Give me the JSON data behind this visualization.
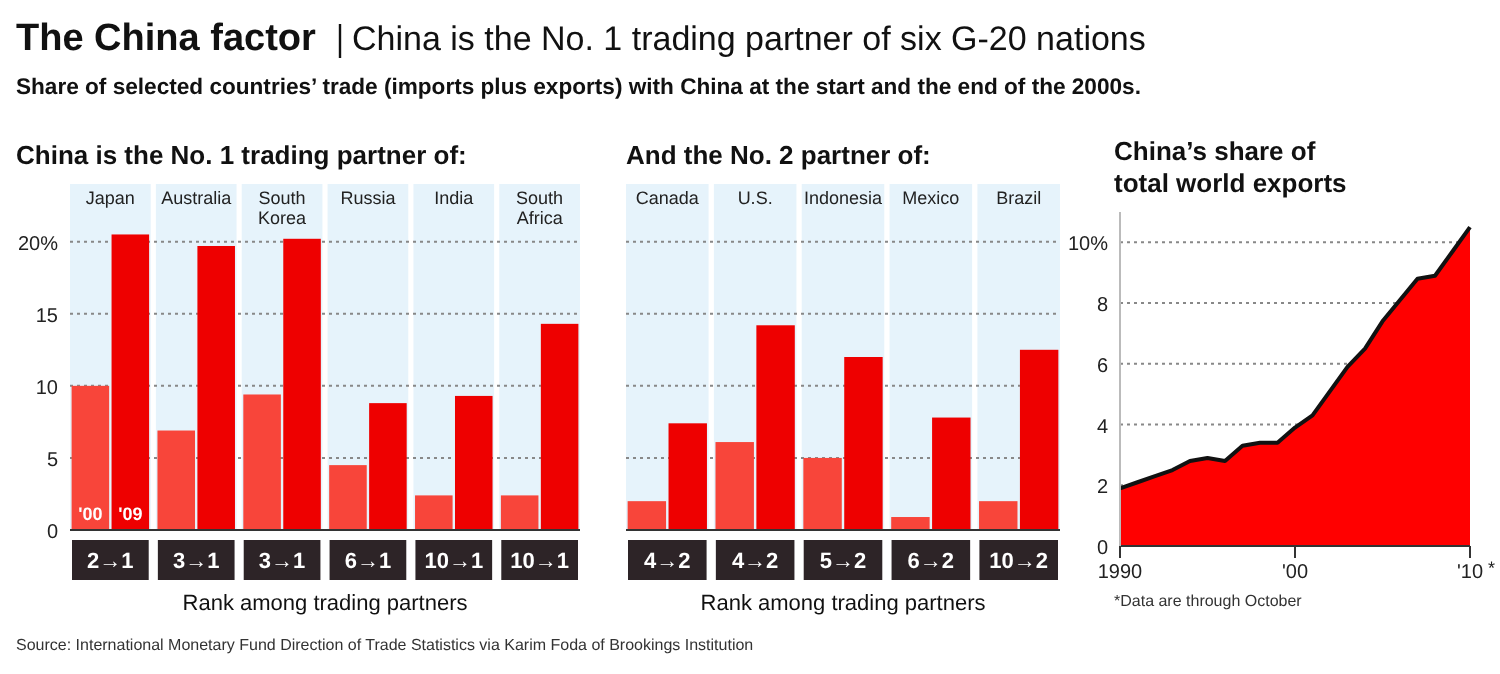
{
  "chart_data": [
    {
      "type": "other",
      "title": "The China factor",
      "subtitle": "China is the No. 1 trading partner of six G-20 nations",
      "annotations": [
        "Share of selected countries’ trade (imports plus exports) with China at the start and the end of the 2000s.",
        "Source: International Monetary Fund Direction of Trade Statistics via Karim Foda of Brookings Institution"
      ]
    },
    {
      "type": "bar",
      "title": "China is the No. 1 trading partner of:",
      "xlabel": "Rank among trading partners",
      "categories": [
        "Japan",
        "Australia",
        "South Korea",
        "Russia",
        "India",
        "South Africa"
      ],
      "series": [
        {
          "name": "'00",
          "color": "#f8453a",
          "values": [
            10.0,
            6.9,
            9.4,
            4.5,
            2.4,
            2.4
          ]
        },
        {
          "name": "'09",
          "color": "#ee0000",
          "values": [
            20.5,
            19.7,
            20.2,
            8.8,
            9.3,
            14.3
          ]
        }
      ],
      "ylim": [
        0,
        24
      ],
      "yticks": [
        0,
        5,
        10,
        15,
        {
          "value": 20,
          "label": "20%"
        }
      ],
      "grid": "y",
      "annotations": [
        "2→1",
        "3→1",
        "3→1",
        "6→1",
        "10→1",
        "10→1"
      ]
    },
    {
      "type": "bar",
      "title": "And the No. 2 partner of:",
      "xlabel": "Rank among trading partners",
      "categories": [
        "Canada",
        "U.S.",
        "Indonesia",
        "Mexico",
        "Brazil"
      ],
      "series": [
        {
          "color": "#f8453a",
          "values": [
            2.0,
            6.1,
            5.0,
            0.9,
            2.0
          ]
        },
        {
          "color": "#ee0000",
          "values": [
            7.4,
            14.2,
            12.0,
            7.8,
            12.5
          ]
        }
      ],
      "ylim": [
        0,
        24
      ],
      "yticks": [
        0,
        5,
        10,
        15,
        20
      ],
      "grid": "y",
      "tick_labels": "x",
      "annotations": [
        "4→2",
        "4→2",
        "5→2",
        "6→2",
        "10→2"
      ]
    },
    {
      "type": "area",
      "title": "China’s share of total world exports",
      "x": [
        1990,
        1991,
        1992,
        1993,
        1994,
        1995,
        1996,
        1997,
        1998,
        1999,
        2000,
        2001,
        2002,
        2003,
        2004,
        2005,
        2006,
        2007,
        2008,
        2009,
        2010
      ],
      "series": [
        {
          "color": "#ff0000",
          "values": [
            1.9,
            2.1,
            2.3,
            2.5,
            2.8,
            2.9,
            2.8,
            3.3,
            3.4,
            3.4,
            3.9,
            4.3,
            5.1,
            5.9,
            6.5,
            7.4,
            8.1,
            8.8,
            8.9,
            9.7,
            10.5
          ]
        }
      ],
      "xlim": [
        1990,
        2010
      ],
      "xticks": [
        1990,
        {
          "value": 2000,
          "label": "'00"
        },
        {
          "value": 2010,
          "label": "'10"
        }
      ],
      "ylim": [
        0,
        11
      ],
      "yticks": [
        0,
        2,
        4,
        6,
        8,
        {
          "value": 10,
          "label": "10%"
        }
      ],
      "grid": "y",
      "annotations": [
        "*Data are through October",
        "*"
      ]
    }
  ]
}
